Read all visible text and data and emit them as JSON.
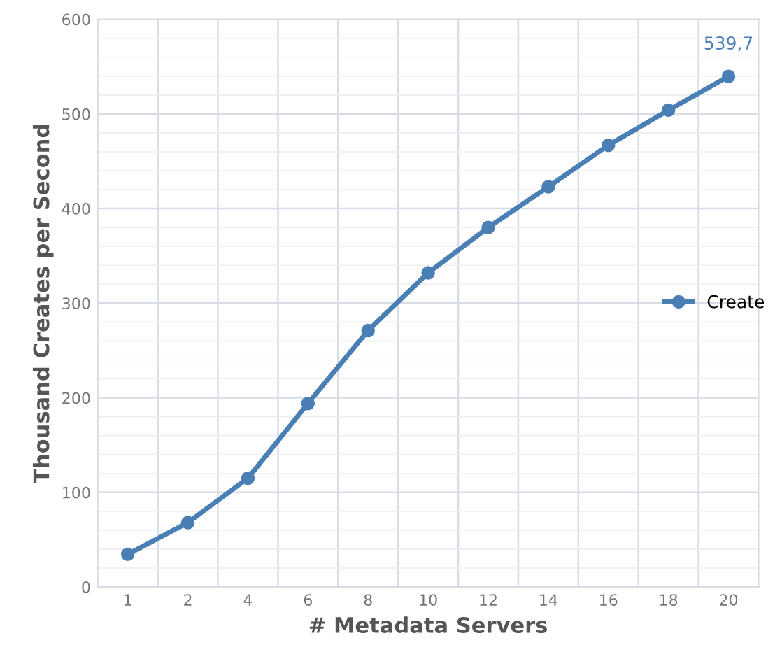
{
  "chart_data": {
    "type": "line",
    "xlabel": "# Metadata Servers",
    "ylabel": "Thousand Creates per Second",
    "categories": [
      "1",
      "2",
      "4",
      "6",
      "8",
      "10",
      "12",
      "14",
      "16",
      "18",
      "20"
    ],
    "series": [
      {
        "name": "Create",
        "color": "#4a7fb5",
        "values": [
          34.5,
          68,
          115,
          194,
          271,
          332,
          380,
          423,
          467,
          504,
          539.7
        ],
        "value_labels": [
          null,
          null,
          null,
          null,
          null,
          null,
          null,
          null,
          null,
          null,
          "539,7"
        ]
      }
    ],
    "ylim": [
      0,
      600
    ],
    "yticks": [
      0,
      100,
      200,
      300,
      400,
      500,
      600
    ],
    "grid": true,
    "legend": "right",
    "marker": "circle",
    "line_style": "solid"
  }
}
